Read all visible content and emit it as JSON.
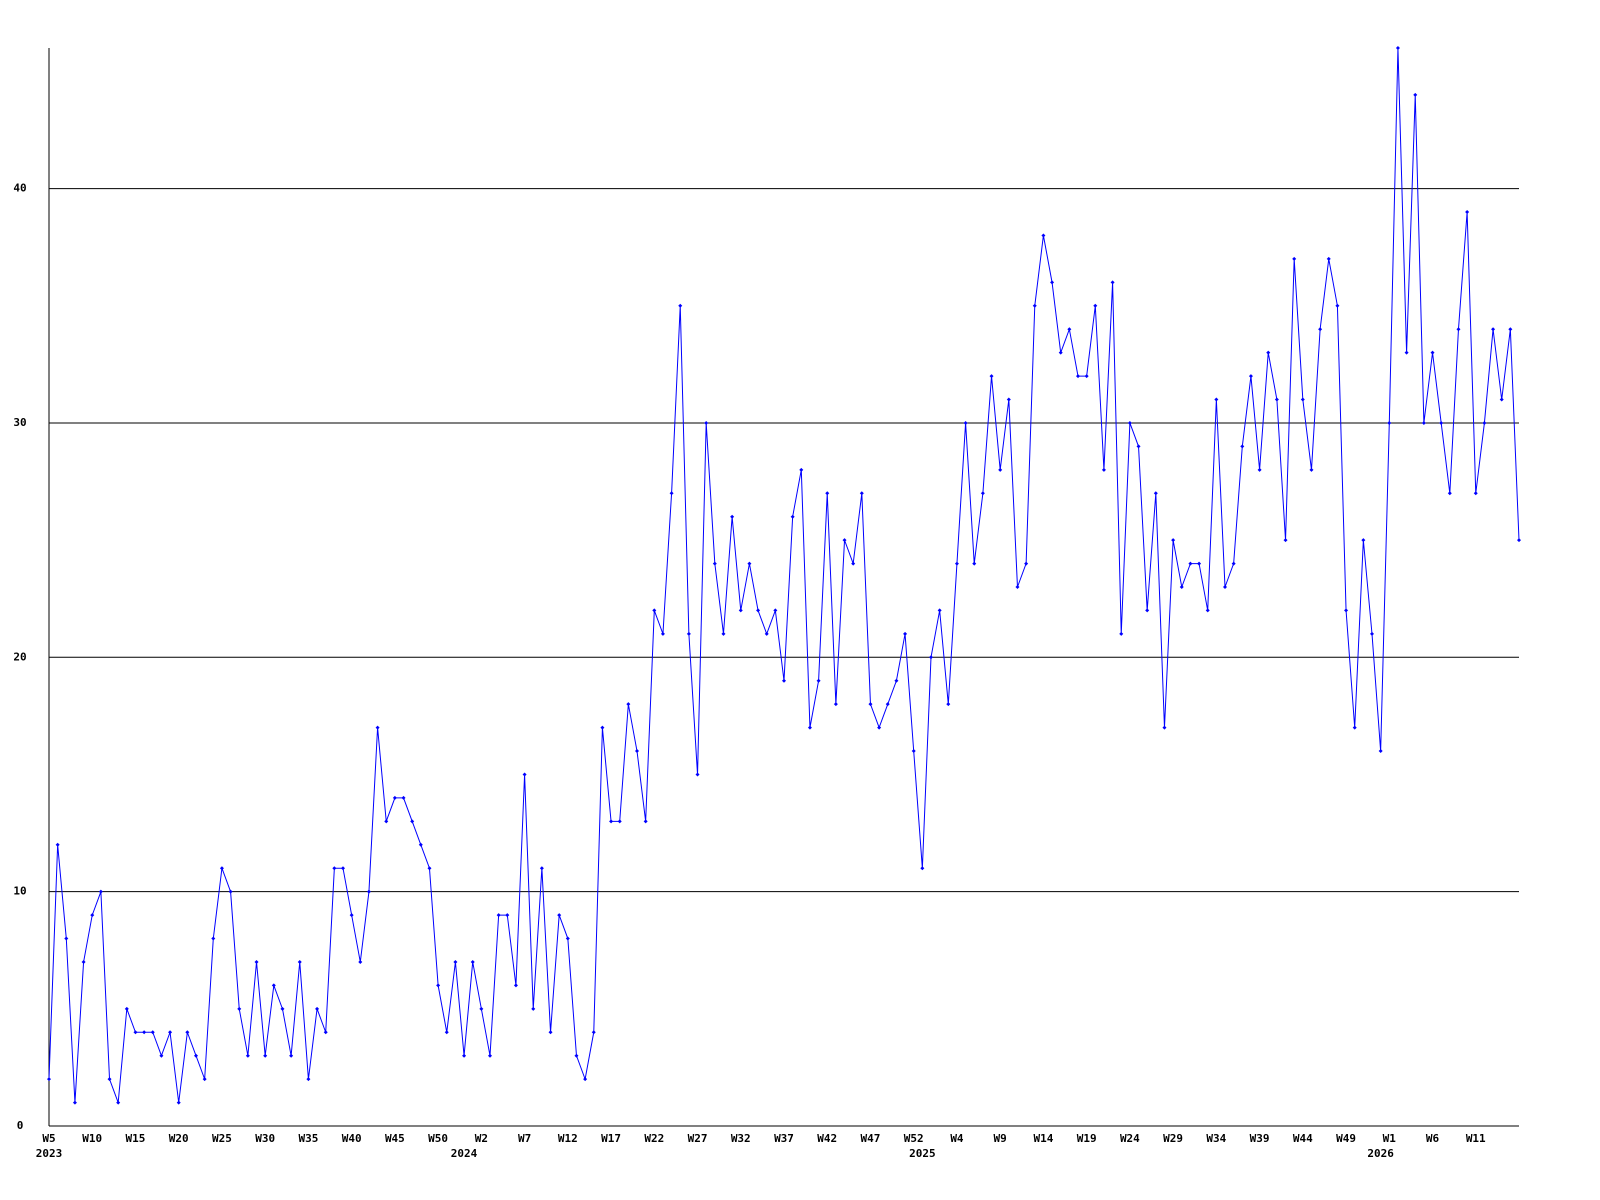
{
  "chart_data": {
    "type": "line",
    "categories": [
      "W5",
      null,
      null,
      null,
      null,
      "W10",
      null,
      null,
      null,
      null,
      "W15",
      null,
      null,
      null,
      null,
      "W20",
      null,
      null,
      null,
      null,
      "W25",
      null,
      null,
      null,
      null,
      "W30",
      null,
      null,
      null,
      null,
      "W35",
      null,
      null,
      null,
      null,
      "W40",
      null,
      null,
      null,
      null,
      "W45",
      null,
      null,
      null,
      null,
      "W50",
      null,
      null,
      null,
      null,
      "W2",
      null,
      null,
      null,
      null,
      "W7",
      null,
      null,
      null,
      null,
      "W12",
      null,
      null,
      null,
      null,
      "W17",
      null,
      null,
      null,
      null,
      "W22",
      null,
      null,
      null,
      null,
      "W27",
      null,
      null,
      null,
      null,
      "W32",
      null,
      null,
      null,
      null,
      "W37",
      null,
      null,
      null,
      null,
      "W42",
      null,
      null,
      null,
      null,
      "W47",
      null,
      null,
      null,
      null,
      "W52",
      null,
      null,
      null,
      null,
      "W4",
      null,
      null,
      null,
      null,
      "W9",
      null,
      null,
      null,
      null,
      "W14",
      null,
      null,
      null,
      null,
      "W19",
      null,
      null,
      null,
      null,
      "W24",
      null,
      null,
      null,
      null,
      "W29",
      null,
      null,
      null,
      null,
      "W34",
      null,
      null,
      null,
      null,
      "W39",
      null,
      null,
      null,
      null,
      "W44",
      null,
      null,
      null,
      null,
      "W49",
      null,
      null,
      null,
      null,
      "W1",
      null,
      null,
      null,
      null,
      "W6",
      null,
      null,
      null,
      null,
      "W11",
      null,
      null,
      null,
      null,
      null
    ],
    "year_categories": [
      "2023",
      null,
      null,
      null,
      null,
      null,
      null,
      null,
      null,
      null,
      null,
      null,
      null,
      null,
      null,
      null,
      null,
      null,
      null,
      null,
      null,
      null,
      null,
      null,
      null,
      null,
      null,
      null,
      null,
      null,
      null,
      null,
      null,
      null,
      null,
      null,
      null,
      null,
      null,
      null,
      null,
      null,
      null,
      null,
      null,
      null,
      null,
      null,
      "2024",
      null,
      null,
      null,
      null,
      null,
      null,
      null,
      null,
      null,
      null,
      null,
      null,
      null,
      null,
      null,
      null,
      null,
      null,
      null,
      null,
      null,
      null,
      null,
      null,
      null,
      null,
      null,
      null,
      null,
      null,
      null,
      null,
      null,
      null,
      null,
      null,
      null,
      null,
      null,
      null,
      null,
      null,
      null,
      null,
      null,
      null,
      null,
      null,
      null,
      null,
      null,
      null,
      "2025",
      null,
      null,
      null,
      null,
      null,
      null,
      null,
      null,
      null,
      null,
      null,
      null,
      null,
      null,
      null,
      null,
      null,
      null,
      null,
      null,
      null,
      null,
      null,
      null,
      null,
      null,
      null,
      null,
      null,
      null,
      null,
      null,
      null,
      null,
      null,
      null,
      null,
      null,
      null,
      null,
      null,
      null,
      null,
      null,
      null,
      null,
      null,
      null,
      null,
      null,
      null,
      null,
      "2026",
      null,
      null,
      null,
      null,
      null,
      null,
      null,
      null,
      null,
      null,
      null,
      null,
      null,
      null,
      null,
      null
    ],
    "values": [
      2,
      12,
      8,
      1,
      7,
      9,
      10,
      2,
      1,
      5,
      4,
      4,
      4,
      3,
      4,
      1,
      4,
      3,
      2,
      8,
      11,
      10,
      5,
      3,
      7,
      3,
      6,
      5,
      3,
      7,
      2,
      5,
      4,
      11,
      11,
      9,
      7,
      10,
      17,
      13,
      14,
      14,
      13,
      12,
      11,
      6,
      4,
      7,
      3,
      7,
      5,
      3,
      9,
      9,
      6,
      15,
      5,
      11,
      4,
      9,
      8,
      3,
      2,
      4,
      17,
      13,
      13,
      18,
      16,
      13,
      22,
      21,
      27,
      35,
      21,
      15,
      30,
      24,
      21,
      26,
      22,
      24,
      22,
      21,
      22,
      19,
      26,
      28,
      17,
      19,
      27,
      18,
      25,
      24,
      27,
      18,
      17,
      18,
      19,
      21,
      16,
      11,
      20,
      22,
      18,
      24,
      30,
      24,
      27,
      32,
      28,
      31,
      23,
      24,
      35,
      38,
      36,
      33,
      34,
      32,
      32,
      35,
      28,
      36,
      21,
      30,
      29,
      22,
      27,
      17,
      25,
      23,
      24,
      24,
      22,
      31,
      23,
      24,
      29,
      32,
      28,
      33,
      31,
      25,
      37,
      31,
      28,
      34,
      37,
      35,
      22,
      17,
      25,
      21,
      16,
      30,
      46,
      33,
      44,
      30,
      33,
      30,
      27,
      34,
      39,
      27,
      30,
      34,
      31,
      34,
      25
    ],
    "color": "#0000ff",
    "ylim": [
      0,
      46
    ],
    "yticks": [
      0,
      10,
      20,
      30,
      40
    ],
    "grid": true
  }
}
